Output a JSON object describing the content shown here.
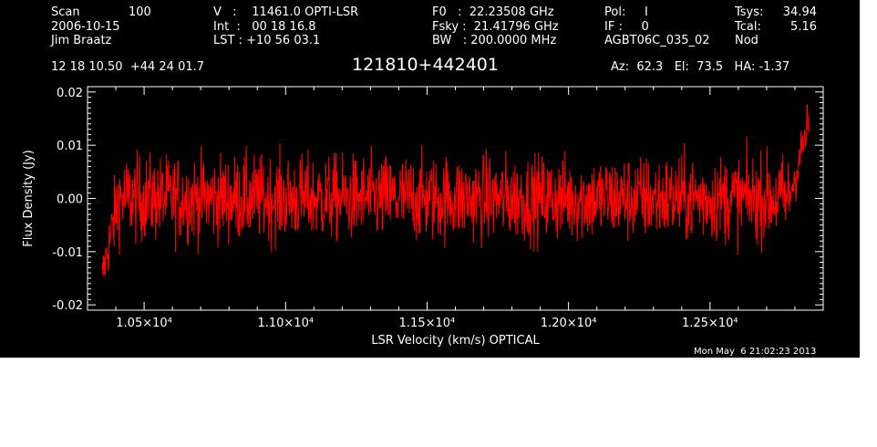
{
  "header": {
    "col1": [
      "Scan",
      "2006-10-15",
      "Jim Braatz"
    ],
    "scan_number": "100",
    "col2": [
      "V   :    11461.0 OPTI-LSR",
      "Int  :   00 18 16.8",
      "LST : +10 56 03.1"
    ],
    "col3": [
      "F0   :  22.23508 GHz",
      "Fsky :  21.41796 GHz",
      "BW   : 200.0000 MHz"
    ],
    "col4": [
      "Pol:     I",
      "IF :     0",
      "AGBT06C_035_02"
    ],
    "col5": [
      "Tsys:",
      "Tcal:",
      "Nod"
    ],
    "col5_values": [
      "34.94",
      "5.16"
    ],
    "coords": "12 18 10.50  +44 24 01.7",
    "source": "121810+442401",
    "azelha": "Az:  62.3   El:  73.5   HA: -1.37",
    "timestamp": "Mon May  6 21:02:23 2013"
  },
  "chart_data": {
    "type": "line",
    "xlabel": "LSR Velocity (km/s) OPTICAL",
    "ylabel": "Flux Density (Jy)",
    "xlim": [
      10300,
      12900
    ],
    "ylim": [
      -0.021,
      0.021
    ],
    "xticks": [
      10500,
      11000,
      11500,
      12000,
      12500
    ],
    "xtick_labels": [
      "1.05×10⁴",
      "1.10×10⁴",
      "1.15×10⁴",
      "1.20×10⁴",
      "1.25×10⁴"
    ],
    "yticks": [
      -0.02,
      -0.01,
      0.0,
      0.01,
      0.02
    ],
    "ytick_labels": [
      "-0.02",
      "-0.01",
      "0.00",
      "0.01",
      "0.02"
    ],
    "x_range_data": [
      10350,
      12850
    ],
    "noise_rms_jy": 0.004,
    "edge_values": [
      {
        "x": 10350,
        "y": -0.015
      },
      {
        "x": 12850,
        "y": 0.019
      }
    ],
    "series_color": "#ff0000",
    "background": "#000000",
    "foreground": "#ffffff"
  }
}
